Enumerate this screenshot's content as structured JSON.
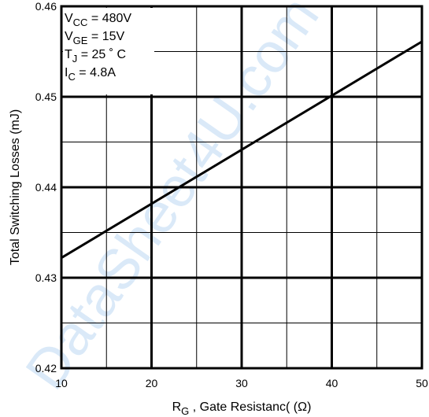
{
  "watermark": "DataSheet4U.com",
  "chart_data": {
    "type": "line",
    "xlabel": {
      "symbol": "R",
      "sub": "G",
      "text": " , Gate Resistanc( (Ω)"
    },
    "ylabel": "Total Switching Losses (mJ)",
    "xlim": [
      10,
      50
    ],
    "ylim": [
      0.42,
      0.46
    ],
    "x_ticks": [
      10,
      20,
      30,
      40,
      50
    ],
    "x_tick_labels": [
      "10",
      "20",
      "30",
      "40",
      "50"
    ],
    "y_ticks": [
      0.42,
      0.43,
      0.44,
      0.45,
      0.46
    ],
    "y_tick_labels": [
      "0.42",
      "0.43",
      "0.44",
      "0.45",
      "0.46"
    ],
    "grid": true,
    "series": [
      {
        "x": [
          10,
          50
        ],
        "y": [
          0.4322,
          0.4561
        ]
      }
    ],
    "conditions": [
      {
        "sym": "V",
        "sub": "CC",
        "text": " = 480V"
      },
      {
        "sym": "V",
        "sub": "GE",
        "text": " = 15V"
      },
      {
        "sym": "T",
        "sub": "J",
        "text": "    = 25  ˚ C"
      },
      {
        "sym": "I",
        "sub": "C",
        "text": "    = 4.8A"
      }
    ]
  }
}
